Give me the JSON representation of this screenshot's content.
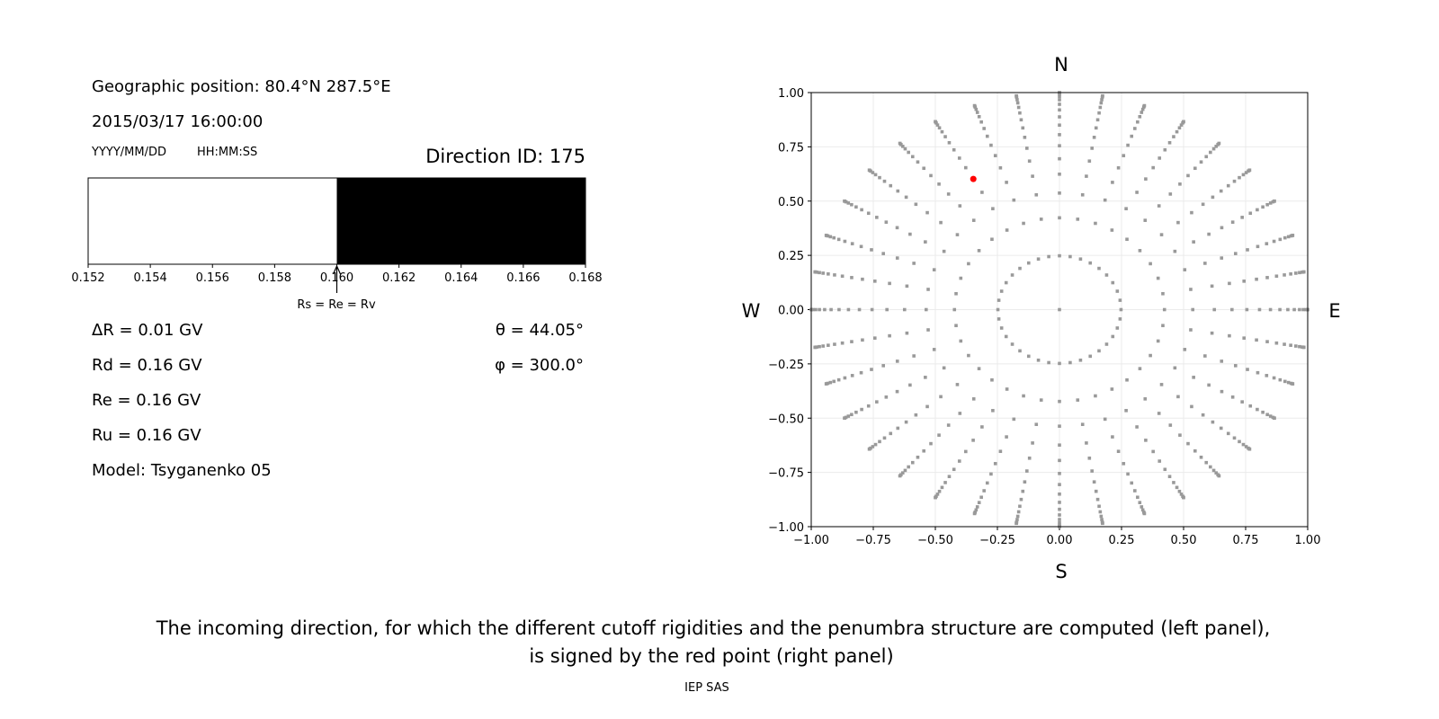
{
  "left_panel": {
    "geo_position": "Geographic position: 80.4°N 287.5°E",
    "datetime": "2015/03/17 16:00:00",
    "date_format": "YYYY/MM/DD",
    "time_format": "HH:MM:SS",
    "direction_id": "Direction ID: 175",
    "delta_r": "ΔR = 0.01 GV",
    "rd": "Rd = 0.16 GV",
    "re": "Re = 0.16 GV",
    "ru": "Ru = 0.16 GV",
    "model": "Model: Tsyganenko 05",
    "theta": "θ = 44.05°",
    "phi": "φ = 300.0°",
    "arrow_label": "Rs = Re = Rv"
  },
  "chart_data": [
    {
      "type": "bar",
      "description_role": "penumbra structure",
      "xlim": [
        0.152,
        0.168
      ],
      "x_ticks": [
        "0.152",
        "0.154",
        "0.156",
        "0.158",
        "0.160",
        "0.162",
        "0.164",
        "0.166",
        "0.168"
      ],
      "segments": [
        {
          "from": 0.152,
          "to": 0.16,
          "color": "#ffffff"
        },
        {
          "from": 0.16,
          "to": 0.168,
          "color": "#000000"
        }
      ],
      "marker_value": 0.16
    },
    {
      "type": "scatter",
      "xlim": [
        -1,
        1
      ],
      "ylim": [
        -1,
        1
      ],
      "grid": true,
      "x_ticks": [
        "−1.00",
        "−0.75",
        "−0.50",
        "−0.25",
        "0.00",
        "0.25",
        "0.50",
        "0.75",
        "1.00"
      ],
      "y_ticks": [
        "1.00",
        "0.75",
        "0.50",
        "0.25",
        "0.00",
        "−0.25",
        "−0.50",
        "−0.75",
        "−1.00"
      ],
      "compass": {
        "north": "N",
        "south": "S",
        "west": "W",
        "east": "E"
      },
      "grid_point_color": "#999999",
      "grid_points": {
        "center": [
          0,
          0
        ],
        "azimuths_deg": [
          0,
          10,
          20,
          30,
          40,
          50,
          60,
          70,
          80,
          90,
          100,
          110,
          120,
          130,
          140,
          150,
          160,
          170,
          180,
          190,
          200,
          210,
          220,
          230,
          240,
          250,
          260,
          270,
          280,
          290,
          300,
          310,
          320,
          330,
          340,
          350
        ],
        "ring_radii": [
          0.248,
          0.423,
          0.537,
          0.624,
          0.695,
          0.755,
          0.806,
          0.85,
          0.888,
          0.92,
          0.946,
          0.967,
          0.982,
          0.993,
          0.999,
          1.0
        ]
      },
      "highlight_point": {
        "x": -0.347,
        "y": 0.602,
        "color": "#ff0000"
      }
    }
  ],
  "caption": {
    "line1": "The incoming direction, for which the different cutoff rigidities and the penumbra structure are computed (left panel),",
    "line2": "is signed by the red point (right panel)"
  },
  "credit": "IEP SAS"
}
